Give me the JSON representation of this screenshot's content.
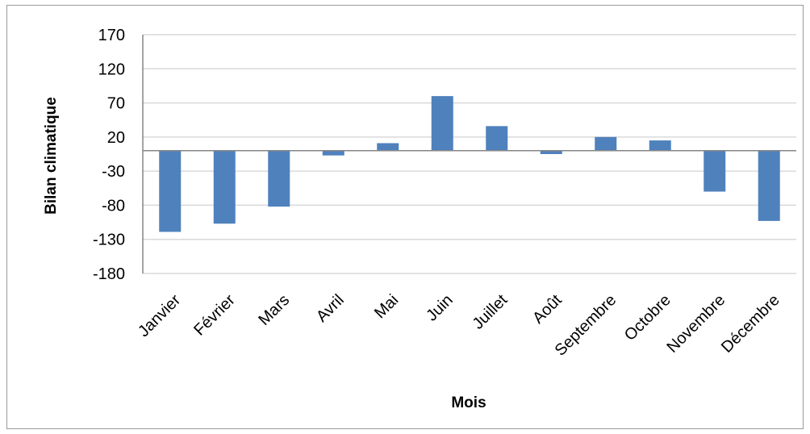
{
  "chart_data": {
    "type": "bar",
    "title": "",
    "xlabel": "Mois",
    "ylabel": "Bilan climatique",
    "ylim": [
      -180,
      170
    ],
    "yticks": [
      170,
      120,
      70,
      20,
      -30,
      -80,
      -130,
      -180
    ],
    "grid": true,
    "legend": "none",
    "categories": [
      "Janvier",
      "Février",
      "Mars",
      "Avril",
      "Mai",
      "Juin",
      "Juillet",
      "Août",
      "Septembre",
      "Octobre",
      "Novembre",
      "Décembre"
    ],
    "values": [
      -119,
      -107,
      -82,
      -7,
      11,
      80,
      36,
      -5,
      20,
      15,
      -60,
      -103
    ]
  },
  "colors": {
    "bar": "#4f81bd",
    "grid": "#d9d9d9",
    "axis": "#868686",
    "frame": "#9a9a9a"
  }
}
